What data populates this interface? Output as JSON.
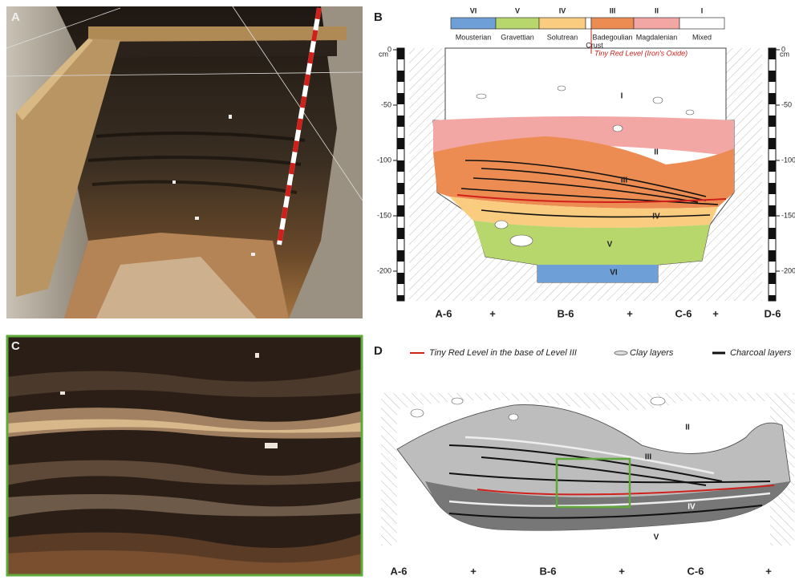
{
  "panel_a": {
    "label": "A"
  },
  "panel_b": {
    "label": "B",
    "legend": [
      {
        "numeral": "VI",
        "culture": "Mousterian",
        "color": "#6e9fd6"
      },
      {
        "numeral": "V",
        "culture": "Gravettian",
        "color": "#b7d66c"
      },
      {
        "numeral": "IV",
        "culture": "Solutrean",
        "color": "#f9cc80"
      },
      {
        "numeral": "III",
        "culture": "Badegoulian",
        "color": "#ec8c52"
      },
      {
        "numeral": "II",
        "culture": "Magdalenian",
        "color": "#f2a7a5"
      },
      {
        "numeral": "I",
        "culture": "Mixed",
        "color": "#ffffff"
      }
    ],
    "crust": "Crust",
    "red_level": "Tiny Red Level (Iron's Oxide)",
    "depth_unit": "cm",
    "depth_ticks": [
      0,
      -50,
      -100,
      -150,
      -200
    ],
    "grid_labels": [
      "A-6",
      "+",
      "B-6",
      "+",
      "C-6",
      "+",
      "D-6"
    ],
    "layer_labels": [
      "I",
      "II",
      "III",
      "IV",
      "V",
      "VI"
    ]
  },
  "panel_c": {
    "label": "C"
  },
  "panel_d": {
    "label": "D",
    "legend": [
      "Tiny Red Level in the base of Level III",
      "Clay layers",
      "Charcoal layers"
    ],
    "layer_labels": [
      "II",
      "III",
      "IV",
      "V"
    ],
    "grid_labels": [
      "A-6",
      "+",
      "B-6",
      "+",
      "C-6",
      "+"
    ]
  }
}
